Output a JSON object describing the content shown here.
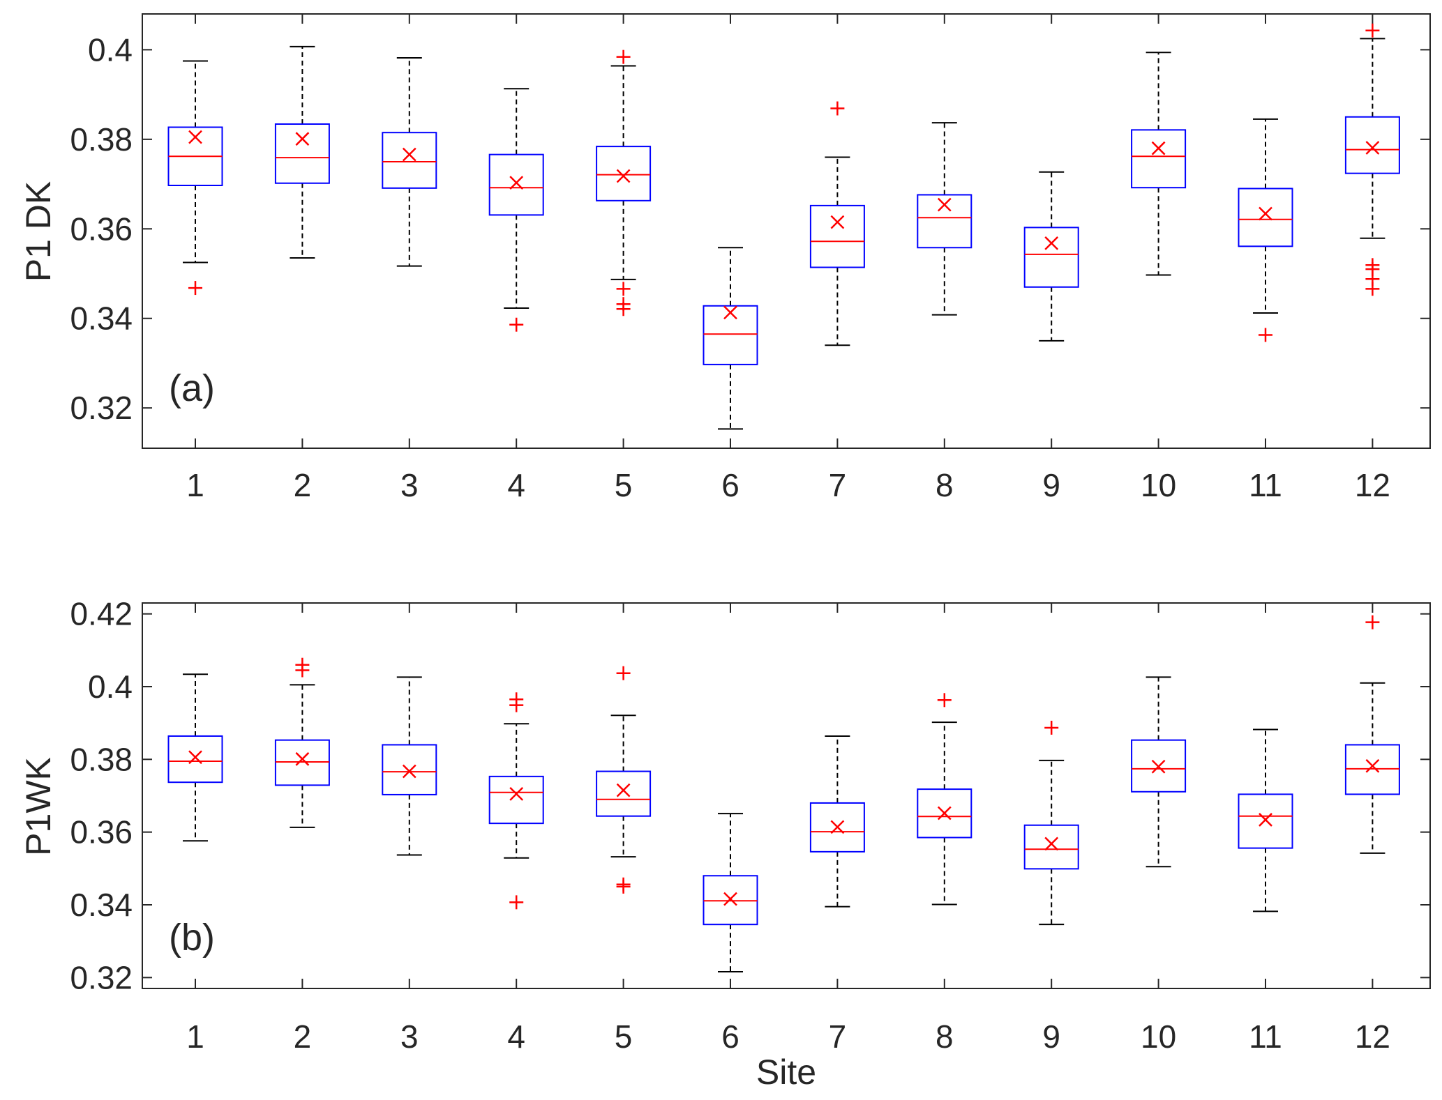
{
  "chart_data": [
    {
      "type": "box",
      "panel_label": "(a)",
      "xlabel": "",
      "ylabel": "P1 DK",
      "categories": [
        "1",
        "2",
        "3",
        "4",
        "5",
        "6",
        "7",
        "8",
        "9",
        "10",
        "11",
        "12"
      ],
      "ylim": [
        0.311,
        0.408
      ],
      "yticks": [
        0.32,
        0.34,
        0.36,
        0.38,
        0.4
      ],
      "ytick_labels": [
        "0.32",
        "0.34",
        "0.36",
        "0.38",
        "0.4"
      ],
      "boxes": [
        {
          "site": "1",
          "whisker_low": 0.3525,
          "q1": 0.3697,
          "median": 0.3762,
          "q3": 0.3827,
          "whisker_high": 0.3975,
          "mean": 0.3805,
          "outliers": [
            0.3468
          ]
        },
        {
          "site": "2",
          "whisker_low": 0.3535,
          "q1": 0.3702,
          "median": 0.3759,
          "q3": 0.3834,
          "whisker_high": 0.4007,
          "mean": 0.3801,
          "outliers": []
        },
        {
          "site": "3",
          "whisker_low": 0.3517,
          "q1": 0.3691,
          "median": 0.375,
          "q3": 0.3815,
          "whisker_high": 0.3982,
          "mean": 0.3766,
          "outliers": []
        },
        {
          "site": "4",
          "whisker_low": 0.3423,
          "q1": 0.3631,
          "median": 0.3692,
          "q3": 0.3766,
          "whisker_high": 0.3913,
          "mean": 0.3703,
          "outliers": [
            0.3386
          ]
        },
        {
          "site": "5",
          "whisker_low": 0.3487,
          "q1": 0.3663,
          "median": 0.3721,
          "q3": 0.3784,
          "whisker_high": 0.3964,
          "mean": 0.3718,
          "outliers": [
            0.3984,
            0.3466,
            0.3432,
            0.3421
          ]
        },
        {
          "site": "6",
          "whisker_low": 0.3153,
          "q1": 0.3297,
          "median": 0.3365,
          "q3": 0.3428,
          "whisker_high": 0.3558,
          "mean": 0.3413,
          "outliers": []
        },
        {
          "site": "7",
          "whisker_low": 0.334,
          "q1": 0.3514,
          "median": 0.3572,
          "q3": 0.3652,
          "whisker_high": 0.376,
          "mean": 0.3615,
          "outliers": [
            0.3869
          ]
        },
        {
          "site": "8",
          "whisker_low": 0.3408,
          "q1": 0.3558,
          "median": 0.3625,
          "q3": 0.3676,
          "whisker_high": 0.3837,
          "mean": 0.3654,
          "outliers": []
        },
        {
          "site": "9",
          "whisker_low": 0.335,
          "q1": 0.347,
          "median": 0.3543,
          "q3": 0.3603,
          "whisker_high": 0.3727,
          "mean": 0.3568,
          "outliers": []
        },
        {
          "site": "10",
          "whisker_low": 0.3497,
          "q1": 0.3692,
          "median": 0.3762,
          "q3": 0.3821,
          "whisker_high": 0.3994,
          "mean": 0.378,
          "outliers": []
        },
        {
          "site": "11",
          "whisker_low": 0.3412,
          "q1": 0.3561,
          "median": 0.3621,
          "q3": 0.369,
          "whisker_high": 0.3845,
          "mean": 0.3634,
          "outliers": [
            0.3363
          ]
        },
        {
          "site": "12",
          "whisker_low": 0.3579,
          "q1": 0.3724,
          "median": 0.3777,
          "q3": 0.385,
          "whisker_high": 0.4025,
          "mean": 0.3781,
          "outliers": [
            0.4043,
            0.3519,
            0.351,
            0.3488,
            0.3466
          ]
        }
      ]
    },
    {
      "type": "box",
      "panel_label": "(b)",
      "xlabel": "Site",
      "ylabel": "P1WK",
      "categories": [
        "1",
        "2",
        "3",
        "4",
        "5",
        "6",
        "7",
        "8",
        "9",
        "10",
        "11",
        "12"
      ],
      "ylim": [
        0.317,
        0.423
      ],
      "yticks": [
        0.32,
        0.34,
        0.36,
        0.38,
        0.4,
        0.42
      ],
      "ytick_labels": [
        "0.32",
        "0.34",
        "0.36",
        "0.38",
        "0.4",
        "0.42"
      ],
      "boxes": [
        {
          "site": "1",
          "whisker_low": 0.3576,
          "q1": 0.3737,
          "median": 0.3795,
          "q3": 0.3864,
          "whisker_high": 0.4034,
          "mean": 0.3806,
          "outliers": []
        },
        {
          "site": "2",
          "whisker_low": 0.3613,
          "q1": 0.3729,
          "median": 0.3793,
          "q3": 0.3853,
          "whisker_high": 0.4005,
          "mean": 0.3801,
          "outliers": [
            0.406,
            0.4045
          ]
        },
        {
          "site": "3",
          "whisker_low": 0.3537,
          "q1": 0.3703,
          "median": 0.3766,
          "q3": 0.384,
          "whisker_high": 0.4026,
          "mean": 0.3767,
          "outliers": []
        },
        {
          "site": "4",
          "whisker_low": 0.3529,
          "q1": 0.3624,
          "median": 0.3709,
          "q3": 0.3753,
          "whisker_high": 0.3898,
          "mean": 0.3705,
          "outliers": [
            0.3965,
            0.3949,
            0.3407
          ]
        },
        {
          "site": "5",
          "whisker_low": 0.3532,
          "q1": 0.3644,
          "median": 0.369,
          "q3": 0.3767,
          "whisker_high": 0.3921,
          "mean": 0.3715,
          "outliers": [
            0.4037,
            0.3456,
            0.345
          ]
        },
        {
          "site": "6",
          "whisker_low": 0.3216,
          "q1": 0.3346,
          "median": 0.3411,
          "q3": 0.348,
          "whisker_high": 0.3651,
          "mean": 0.3416,
          "outliers": []
        },
        {
          "site": "7",
          "whisker_low": 0.3395,
          "q1": 0.3546,
          "median": 0.3601,
          "q3": 0.368,
          "whisker_high": 0.3864,
          "mean": 0.3614,
          "outliers": []
        },
        {
          "site": "8",
          "whisker_low": 0.3401,
          "q1": 0.3585,
          "median": 0.3643,
          "q3": 0.3718,
          "whisker_high": 0.3902,
          "mean": 0.3652,
          "outliers": [
            0.3963
          ]
        },
        {
          "site": "9",
          "whisker_low": 0.3346,
          "q1": 0.3499,
          "median": 0.3553,
          "q3": 0.3619,
          "whisker_high": 0.3797,
          "mean": 0.3568,
          "outliers": [
            0.3887
          ]
        },
        {
          "site": "10",
          "whisker_low": 0.3505,
          "q1": 0.3711,
          "median": 0.3774,
          "q3": 0.3853,
          "whisker_high": 0.4026,
          "mean": 0.378,
          "outliers": []
        },
        {
          "site": "11",
          "whisker_low": 0.3382,
          "q1": 0.3556,
          "median": 0.3644,
          "q3": 0.3704,
          "whisker_high": 0.3882,
          "mean": 0.3634,
          "outliers": []
        },
        {
          "site": "12",
          "whisker_low": 0.3542,
          "q1": 0.3704,
          "median": 0.3774,
          "q3": 0.384,
          "whisker_high": 0.401,
          "mean": 0.3782,
          "outliers": [
            0.4177
          ]
        }
      ]
    }
  ],
  "colors": {
    "box": "#0000ff",
    "median": "#ff0000",
    "mean_marker": "#ff0000",
    "outlier": "#ff0000",
    "whisker": "#000000",
    "axes": "#262626"
  }
}
